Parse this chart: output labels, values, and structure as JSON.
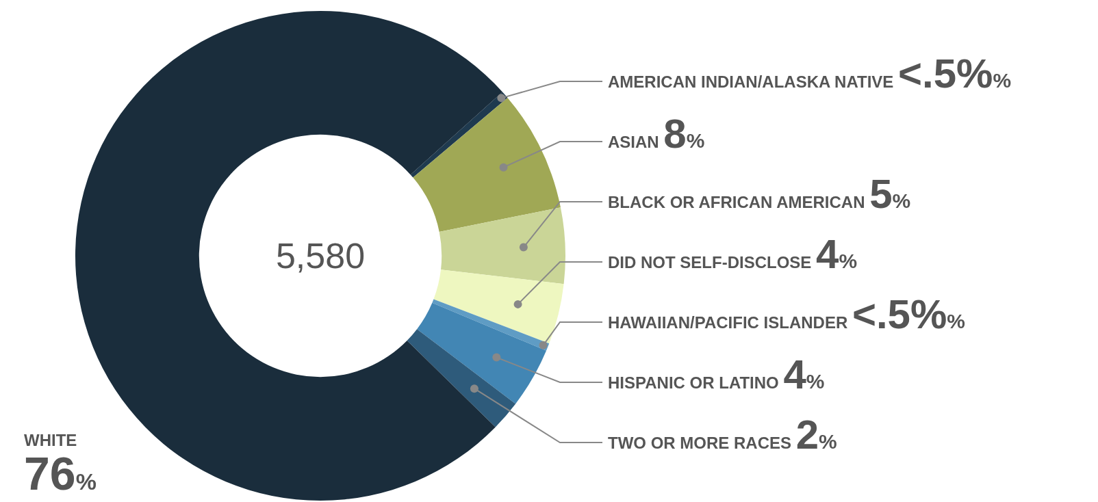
{
  "chart_data": {
    "type": "donut",
    "categories": [
      "AMERICAN INDIAN/ALASKA NATIVE",
      "ASIAN",
      "BLACK OR AFRICAN AMERICAN",
      "DID NOT SELF-DISCLOSE",
      "HAWAIIAN/PACIFIC ISLANDER",
      "HISPANIC OR LATINO",
      "TWO OR MORE RACES",
      "WHITE"
    ],
    "values": [
      0.5,
      8,
      5,
      4,
      0.5,
      4,
      2,
      76
    ],
    "value_labels": [
      "<.5%%",
      "8%",
      "5%",
      "4%",
      "<.5%%",
      "4%",
      "2%",
      "76%"
    ],
    "colors": [
      "#1f3a4f",
      "#a0a855",
      "#cad597",
      "#eef7c0",
      "#5f9cc4",
      "#4286b4",
      "#2e5b7b",
      "#1a2d3c"
    ],
    "annotations": [
      "5,580"
    ]
  }
}
